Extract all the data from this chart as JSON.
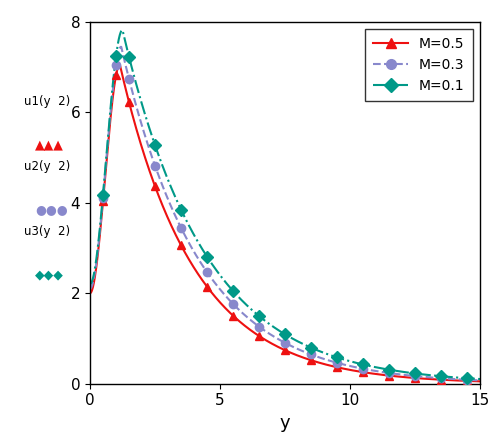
{
  "title": "",
  "xlabel": "y",
  "ylabel": "",
  "xlim": [
    0,
    15
  ],
  "ylim": [
    0,
    8
  ],
  "xticks": [
    0,
    5,
    10,
    15
  ],
  "yticks": [
    0,
    2,
    4,
    6,
    8
  ],
  "series": [
    {
      "label": "M=0.5",
      "M": 0.5,
      "line_color": "#EE1111",
      "marker": "^",
      "marker_color": "#EE1111",
      "linestyle": "-",
      "peak_val": 7.05,
      "peak_y": 1.15,
      "y0_val": 2.0,
      "decay": 0.355
    },
    {
      "label": "M=0.3",
      "M": 0.3,
      "line_color": "#8888cc",
      "marker": "o",
      "marker_color": "#8888cc",
      "linestyle": "--",
      "peak_val": 7.45,
      "peak_y": 1.2,
      "y0_val": 2.1,
      "decay": 0.335
    },
    {
      "label": "M=0.1",
      "M": 0.1,
      "line_color": "#009988",
      "marker": "D",
      "marker_color": "#009988",
      "linestyle": "-.",
      "peak_val": 7.82,
      "peak_y": 1.25,
      "y0_val": 2.2,
      "decay": 0.315
    }
  ],
  "background_color": "#ffffff",
  "left_labels": [
    "u1(y  2)",
    "u2(y  2)",
    "u3(y  2)"
  ]
}
